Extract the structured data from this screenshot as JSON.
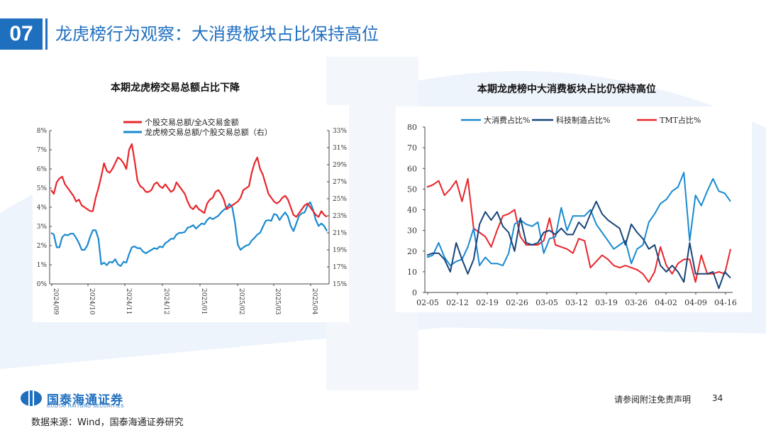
{
  "header": {
    "section_number": "07",
    "title": "龙虎榜行为观察：大消费板块占比保持高位"
  },
  "colors": {
    "brand_blue": "#1f6fbf",
    "red": "#e8262b",
    "light_blue": "#1a8ad0",
    "dark_blue": "#17457a"
  },
  "chart1": {
    "title": "本期龙虎榜交易总额占比下降",
    "chart_data": {
      "type": "line",
      "legend": [
        "个股交易总额/全A交易金额",
        "龙虎榜交易总额/个股交易总额（右）"
      ],
      "y_left": {
        "ticks": [
          "0%",
          "1%",
          "2%",
          "3%",
          "4%",
          "5%",
          "6%",
          "7%",
          "8%"
        ],
        "range": [
          0,
          8
        ]
      },
      "y_right": {
        "ticks": [
          "15%",
          "17%",
          "19%",
          "21%",
          "23%",
          "25%",
          "27%",
          "29%",
          "31%",
          "33%"
        ],
        "range": [
          15,
          33
        ]
      },
      "x_ticks": [
        "2024/09",
        "2024/10",
        "2024/11",
        "2024/12",
        "2025/01",
        "2025/02",
        "2025/03",
        "2025/04"
      ],
      "series": [
        {
          "name": "个股交易总额/全A交易金额",
          "axis": "left",
          "color": "#e8262b",
          "values": [
            4.9,
            4.7,
            5.3,
            5.5,
            5.6,
            5.2,
            5.0,
            4.8,
            4.6,
            4.3,
            4.4,
            4.1,
            4.0,
            3.9,
            3.8,
            3.8,
            4.5,
            5.0,
            5.6,
            6.3,
            5.9,
            5.8,
            6.0,
            6.3,
            6.6,
            6.5,
            6.3,
            6.0,
            7.0,
            7.3,
            6.4,
            5.4,
            5.1,
            5.0,
            4.8,
            4.8,
            4.9,
            5.2,
            5.3,
            5.1,
            5.0,
            5.2,
            5.0,
            4.8,
            4.9,
            5.3,
            5.1,
            4.9,
            4.7,
            4.3,
            4.0,
            3.9,
            4.1,
            3.9,
            3.8,
            3.7,
            4.2,
            4.4,
            4.5,
            4.8,
            4.9,
            4.7,
            4.4,
            3.9,
            4.0,
            4.1,
            4.2,
            4.3,
            4.5,
            4.9,
            5.0,
            5.1,
            5.8,
            6.3,
            6.6,
            6.0,
            5.7,
            5.2,
            4.7,
            4.5,
            4.3,
            4.2,
            4.3,
            4.5,
            4.6,
            4.4,
            4.0,
            3.6,
            3.5,
            3.7,
            3.9,
            4.1,
            4.2,
            4.0,
            3.8,
            3.6,
            3.5,
            3.8,
            3.6,
            3.5
          ]
        },
        {
          "name": "龙虎榜交易总额/个股交易总额（右）",
          "axis": "right",
          "color": "#1a8ad0",
          "values": [
            21.0,
            20.8,
            19.3,
            19.3,
            20.5,
            20.8,
            20.7,
            20.9,
            20.9,
            20.4,
            19.8,
            19.0,
            19.0,
            19.5,
            20.5,
            21.3,
            21.3,
            20.3,
            17.3,
            17.5,
            17.2,
            17.6,
            17.5,
            17.9,
            17.3,
            17.1,
            17.6,
            17.5,
            18.5,
            19.3,
            19.4,
            19.2,
            19.2,
            18.8,
            18.6,
            18.8,
            19.0,
            19.2,
            19.1,
            19.4,
            19.3,
            19.8,
            20.0,
            20.3,
            20.3,
            20.8,
            21.0,
            21.0,
            21.1,
            21.6,
            21.7,
            21.9,
            21.5,
            21.8,
            22.1,
            22.0,
            22.5,
            22.8,
            22.6,
            22.8,
            23.0,
            23.4,
            23.7,
            23.9,
            24.4,
            24.0,
            22.2,
            19.6,
            19.0,
            19.3,
            19.5,
            19.6,
            20.1,
            20.4,
            20.8,
            21.0,
            21.7,
            22.4,
            22.5,
            22.4,
            23.2,
            23.1,
            22.5,
            23.0,
            23.4,
            22.9,
            21.8,
            21.2,
            22.1,
            23.0,
            23.3,
            23.4,
            24.2,
            24.6,
            23.7,
            22.5,
            21.8,
            22.1,
            21.8,
            21.2
          ]
        }
      ]
    }
  },
  "chart2": {
    "title": "本期龙虎榜中大消费板块占比仍保持高位",
    "chart_data": {
      "type": "line",
      "legend": [
        "大消费占比%",
        "科技制造占比%",
        "TMT占比%"
      ],
      "y_ticks": [
        "0",
        "10",
        "20",
        "30",
        "40",
        "50",
        "60",
        "70",
        "80"
      ],
      "y_range": [
        0,
        80
      ],
      "x_ticks": [
        "02-05",
        "02-12",
        "02-19",
        "02-26",
        "03-05",
        "03-12",
        "03-19",
        "03-26",
        "04-02",
        "04-09",
        "04-16"
      ],
      "series": [
        {
          "name": "大消费占比%",
          "color": "#1a8ad0",
          "values": [
            17,
            18,
            24,
            17,
            13,
            15,
            16,
            22,
            31,
            13,
            17,
            14,
            14,
            13,
            19,
            33,
            35,
            33,
            32,
            34,
            19,
            26,
            27,
            41,
            30,
            37,
            37,
            37,
            40,
            33,
            29,
            25,
            21,
            23,
            25,
            14,
            21,
            23,
            34,
            38,
            43,
            45,
            49,
            51,
            58,
            25,
            47,
            42,
            49,
            55,
            49,
            48,
            44
          ]
        },
        {
          "name": "科技制造占比%",
          "color": "#17457a",
          "values": [
            18,
            19,
            19,
            16,
            10,
            24,
            16,
            9,
            16,
            33,
            39,
            35,
            39,
            32,
            29,
            20,
            36,
            24,
            23,
            24,
            29,
            30,
            28,
            31,
            28,
            28,
            34,
            31,
            38,
            44,
            38,
            35,
            33,
            31,
            23,
            33,
            29,
            26,
            21,
            23,
            13,
            10,
            13,
            10,
            5,
            24,
            9,
            9,
            9,
            10,
            2,
            10,
            7
          ]
        },
        {
          "name": "TMT占比%",
          "color": "#e8262b",
          "values": [
            51,
            52,
            54,
            47,
            50,
            54,
            44,
            55,
            31,
            29,
            27,
            22,
            30,
            37,
            38,
            40,
            27,
            23,
            23,
            23,
            25,
            36,
            23,
            22,
            21,
            19,
            26,
            25,
            12,
            15,
            18,
            16,
            13,
            12,
            13,
            12,
            11,
            9,
            5,
            10,
            22,
            13,
            9,
            14,
            16,
            16,
            5,
            18,
            9,
            9,
            10,
            9,
            21
          ]
        }
      ]
    }
  },
  "footer": {
    "logo_name": "国泰海通证券",
    "logo_en": "GUOTAI HAITONG SECURITIES",
    "source": "数据来源：Wind，国泰海通证券研究",
    "disclaimer": "请参阅附注免责声明",
    "page_number": "34"
  }
}
